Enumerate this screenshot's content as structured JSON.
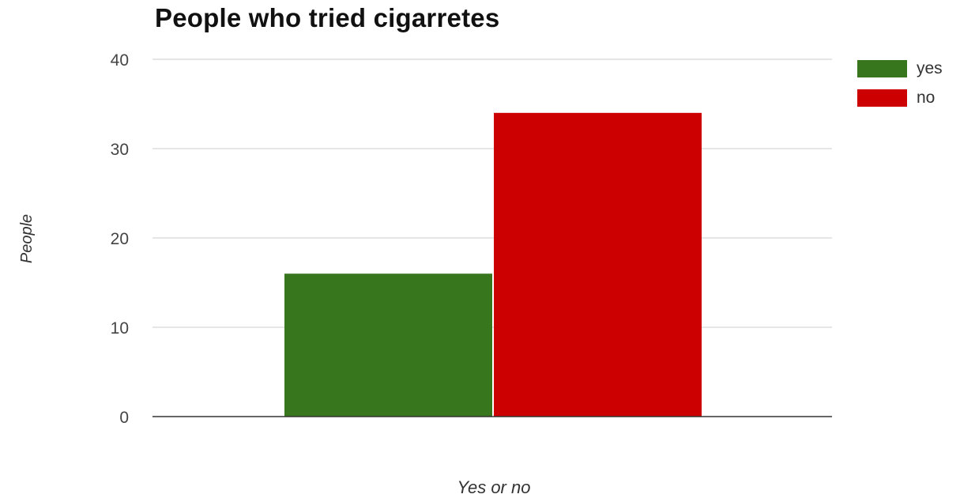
{
  "chart_data": {
    "type": "bar",
    "title": "People who tried cigarretes",
    "xlabel": "Yes or no",
    "ylabel": "People",
    "categories": [
      ""
    ],
    "series": [
      {
        "name": "yes",
        "values": [
          16
        ],
        "color": "#38761d"
      },
      {
        "name": "no",
        "values": [
          34
        ],
        "color": "#cc0000"
      }
    ],
    "ylim": [
      0,
      40
    ],
    "yticks": [
      0,
      10,
      20,
      30,
      40
    ],
    "grid": true,
    "legend": "right"
  }
}
